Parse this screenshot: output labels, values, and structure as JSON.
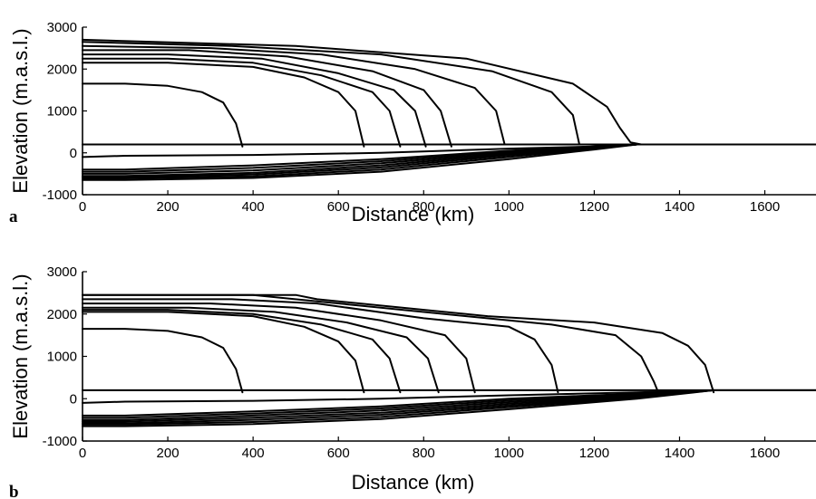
{
  "chart_data": [
    {
      "type": "line",
      "panel_label": "a",
      "xlabel": "Distance (km)",
      "ylabel": "Elevation (m.a.s.l.)",
      "xlim": [
        0,
        1720
      ],
      "ylim": [
        -1000,
        3000
      ],
      "xticks": [
        0,
        200,
        400,
        600,
        800,
        1000,
        1200,
        1400,
        1600
      ],
      "yticks": [
        -1000,
        0,
        1000,
        2000,
        3000
      ],
      "grid": false,
      "series": [
        {
          "x": [
            0,
            100,
            200,
            280,
            330,
            360,
            375
          ],
          "y": [
            1650,
            1650,
            1600,
            1450,
            1200,
            700,
            150
          ]
        },
        {
          "x": [
            0,
            200,
            400,
            520,
            600,
            640,
            660
          ],
          "y": [
            2150,
            2150,
            2050,
            1800,
            1450,
            1000,
            150
          ]
        },
        {
          "x": [
            0,
            200,
            400,
            560,
            680,
            720,
            745
          ],
          "y": [
            2250,
            2250,
            2150,
            1850,
            1450,
            1000,
            150
          ]
        },
        {
          "x": [
            0,
            200,
            420,
            600,
            730,
            780,
            805
          ],
          "y": [
            2350,
            2350,
            2250,
            1900,
            1500,
            1000,
            150
          ]
        },
        {
          "x": [
            0,
            250,
            480,
            680,
            800,
            840,
            865
          ],
          "y": [
            2450,
            2450,
            2300,
            1950,
            1500,
            1000,
            150
          ]
        },
        {
          "x": [
            0,
            300,
            560,
            780,
            920,
            970,
            990
          ],
          "y": [
            2550,
            2500,
            2350,
            2000,
            1550,
            1000,
            200
          ]
        },
        {
          "x": [
            0,
            350,
            700,
            960,
            1100,
            1150,
            1165
          ],
          "y": [
            2650,
            2550,
            2350,
            1950,
            1450,
            900,
            200
          ]
        },
        {
          "x": [
            0,
            500,
            900,
            1150,
            1230,
            1260,
            1285,
            1310
          ],
          "y": [
            2700,
            2550,
            2250,
            1650,
            1100,
            600,
            250,
            200
          ]
        },
        {
          "x": [
            0,
            1720
          ],
          "y": [
            200,
            200
          ]
        },
        {
          "x": [
            0,
            100,
            400,
            700,
            1000,
            1200,
            1300,
            1720
          ],
          "y": [
            -100,
            -70,
            -50,
            0,
            100,
            150,
            200,
            200
          ]
        },
        {
          "x": [
            0,
            100,
            400,
            700,
            1000,
            1200,
            1300
          ],
          "y": [
            -400,
            -400,
            -300,
            -150,
            50,
            150,
            200
          ]
        },
        {
          "x": [
            0,
            100,
            400,
            700,
            1000,
            1200,
            1300
          ],
          "y": [
            -450,
            -450,
            -360,
            -200,
            30,
            150,
            200
          ]
        },
        {
          "x": [
            0,
            100,
            400,
            700,
            1000,
            1200,
            1300
          ],
          "y": [
            -500,
            -500,
            -420,
            -250,
            0,
            140,
            200
          ]
        },
        {
          "x": [
            0,
            100,
            400,
            700,
            1000,
            1200,
            1300
          ],
          "y": [
            -550,
            -550,
            -480,
            -300,
            -30,
            130,
            200
          ]
        },
        {
          "x": [
            0,
            100,
            400,
            700,
            1000,
            1200,
            1300
          ],
          "y": [
            -580,
            -580,
            -520,
            -350,
            -60,
            120,
            200
          ]
        },
        {
          "x": [
            0,
            100,
            400,
            700,
            1000,
            1200,
            1300
          ],
          "y": [
            -610,
            -610,
            -560,
            -400,
            -100,
            100,
            200
          ]
        },
        {
          "x": [
            0,
            100,
            400,
            700,
            1000,
            1200,
            1300
          ],
          "y": [
            -650,
            -650,
            -600,
            -450,
            -150,
            80,
            200
          ]
        }
      ]
    },
    {
      "type": "line",
      "panel_label": "b",
      "xlabel": "Distance (km)",
      "ylabel": "Elevation (m.a.s.l.)",
      "xlim": [
        0,
        1720
      ],
      "ylim": [
        -1000,
        3000
      ],
      "xticks": [
        0,
        200,
        400,
        600,
        800,
        1000,
        1200,
        1400,
        1600
      ],
      "yticks": [
        -1000,
        0,
        1000,
        2000,
        3000
      ],
      "grid": false,
      "series": [
        {
          "x": [
            0,
            100,
            200,
            280,
            330,
            360,
            375
          ],
          "y": [
            1650,
            1650,
            1600,
            1450,
            1200,
            700,
            150
          ]
        },
        {
          "x": [
            0,
            200,
            400,
            520,
            600,
            640,
            660
          ],
          "y": [
            2050,
            2050,
            1950,
            1700,
            1350,
            900,
            150
          ]
        },
        {
          "x": [
            0,
            200,
            400,
            560,
            680,
            720,
            745
          ],
          "y": [
            2100,
            2100,
            2000,
            1750,
            1400,
            950,
            150
          ]
        },
        {
          "x": [
            0,
            250,
            450,
            620,
            760,
            810,
            835
          ],
          "y": [
            2150,
            2150,
            2050,
            1800,
            1450,
            950,
            150
          ]
        },
        {
          "x": [
            0,
            300,
            500,
            700,
            850,
            900,
            920
          ],
          "y": [
            2250,
            2250,
            2150,
            1850,
            1500,
            950,
            150
          ]
        },
        {
          "x": [
            0,
            350,
            550,
            800,
            1000,
            1060,
            1100,
            1115
          ],
          "y": [
            2350,
            2350,
            2250,
            1900,
            1700,
            1400,
            800,
            150
          ]
        },
        {
          "x": [
            0,
            400,
            550,
            900,
            1100,
            1250,
            1310,
            1340,
            1350
          ],
          "y": [
            2450,
            2450,
            2300,
            1950,
            1750,
            1500,
            1000,
            400,
            150
          ]
        },
        {
          "x": [
            0,
            500,
            550,
            750,
            950,
            1200,
            1360,
            1420,
            1460,
            1480
          ],
          "y": [
            2450,
            2450,
            2350,
            2150,
            1950,
            1800,
            1550,
            1250,
            800,
            150
          ]
        },
        {
          "x": [
            0,
            1720
          ],
          "y": [
            200,
            200
          ]
        },
        {
          "x": [
            0,
            100,
            400,
            700,
            1000,
            1300,
            1480,
            1720
          ],
          "y": [
            -100,
            -70,
            -50,
            0,
            80,
            150,
            200,
            200
          ]
        },
        {
          "x": [
            0,
            100,
            400,
            700,
            1000,
            1300,
            1480
          ],
          "y": [
            -400,
            -400,
            -300,
            -180,
            0,
            120,
            200
          ]
        },
        {
          "x": [
            0,
            100,
            400,
            700,
            1000,
            1300,
            1480
          ],
          "y": [
            -450,
            -450,
            -350,
            -230,
            -40,
            100,
            200
          ]
        },
        {
          "x": [
            0,
            100,
            400,
            700,
            1000,
            1300,
            1480
          ],
          "y": [
            -500,
            -500,
            -400,
            -280,
            -80,
            80,
            200
          ]
        },
        {
          "x": [
            0,
            100,
            400,
            700,
            1000,
            1300,
            1480
          ],
          "y": [
            -540,
            -540,
            -450,
            -330,
            -120,
            60,
            200
          ]
        },
        {
          "x": [
            0,
            100,
            400,
            700,
            1000,
            1300,
            1480
          ],
          "y": [
            -580,
            -580,
            -500,
            -380,
            -160,
            40,
            200
          ]
        },
        {
          "x": [
            0,
            100,
            400,
            700,
            1000,
            1300,
            1480
          ],
          "y": [
            -610,
            -610,
            -550,
            -430,
            -200,
            20,
            200
          ]
        },
        {
          "x": [
            0,
            100,
            400,
            700,
            1000,
            1300,
            1480
          ],
          "y": [
            -650,
            -650,
            -600,
            -480,
            -250,
            0,
            200
          ]
        }
      ]
    }
  ]
}
